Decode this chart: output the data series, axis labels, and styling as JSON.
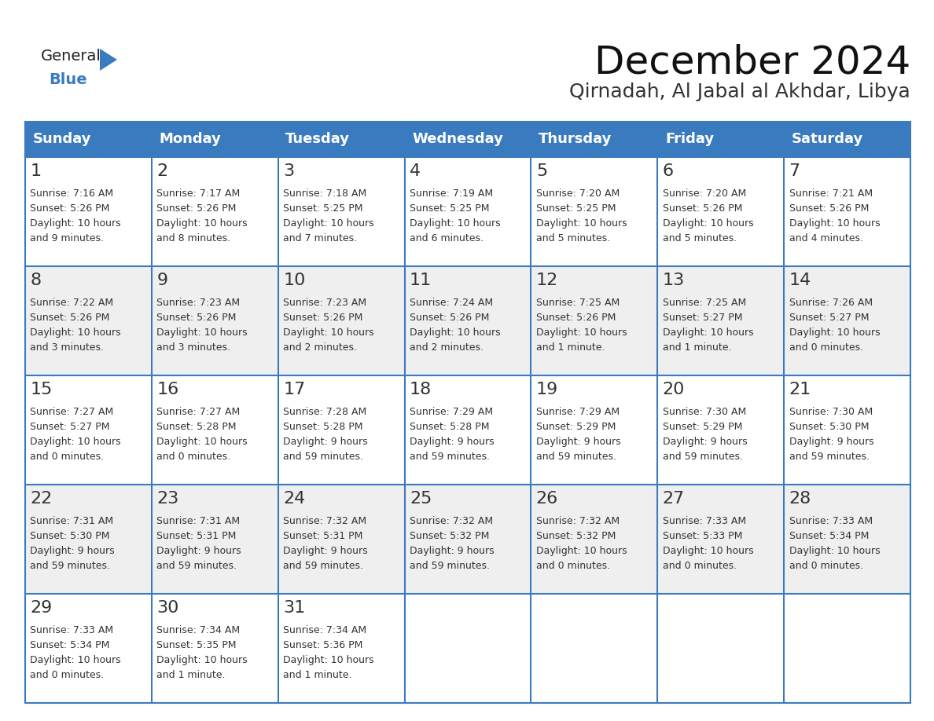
{
  "title": "December 2024",
  "subtitle": "Qirnadah, Al Jabal al Akhdar, Libya",
  "header_color": "#3a7bbf",
  "header_text_color": "#ffffff",
  "cell_bg_even": "#efefef",
  "cell_bg_odd": "#ffffff",
  "border_color": "#3a7bbf",
  "text_color": "#333333",
  "day_names": [
    "Sunday",
    "Monday",
    "Tuesday",
    "Wednesday",
    "Thursday",
    "Friday",
    "Saturday"
  ],
  "title_fontsize": 36,
  "subtitle_fontsize": 18,
  "header_fontsize": 13,
  "day_num_fontsize": 14,
  "cell_fontsize": 9,
  "logo_general_color": "#222222",
  "logo_blue_color": "#3a7bbf",
  "logo_triangle_color": "#3a7bbf",
  "calendar": [
    [
      {
        "day": 1,
        "sunrise": "7:16 AM",
        "sunset": "5:26 PM",
        "daylight_line1": "Daylight: 10 hours",
        "daylight_line2": "and 9 minutes."
      },
      {
        "day": 2,
        "sunrise": "7:17 AM",
        "sunset": "5:26 PM",
        "daylight_line1": "Daylight: 10 hours",
        "daylight_line2": "and 8 minutes."
      },
      {
        "day": 3,
        "sunrise": "7:18 AM",
        "sunset": "5:25 PM",
        "daylight_line1": "Daylight: 10 hours",
        "daylight_line2": "and 7 minutes."
      },
      {
        "day": 4,
        "sunrise": "7:19 AM",
        "sunset": "5:25 PM",
        "daylight_line1": "Daylight: 10 hours",
        "daylight_line2": "and 6 minutes."
      },
      {
        "day": 5,
        "sunrise": "7:20 AM",
        "sunset": "5:25 PM",
        "daylight_line1": "Daylight: 10 hours",
        "daylight_line2": "and 5 minutes."
      },
      {
        "day": 6,
        "sunrise": "7:20 AM",
        "sunset": "5:26 PM",
        "daylight_line1": "Daylight: 10 hours",
        "daylight_line2": "and 5 minutes."
      },
      {
        "day": 7,
        "sunrise": "7:21 AM",
        "sunset": "5:26 PM",
        "daylight_line1": "Daylight: 10 hours",
        "daylight_line2": "and 4 minutes."
      }
    ],
    [
      {
        "day": 8,
        "sunrise": "7:22 AM",
        "sunset": "5:26 PM",
        "daylight_line1": "Daylight: 10 hours",
        "daylight_line2": "and 3 minutes."
      },
      {
        "day": 9,
        "sunrise": "7:23 AM",
        "sunset": "5:26 PM",
        "daylight_line1": "Daylight: 10 hours",
        "daylight_line2": "and 3 minutes."
      },
      {
        "day": 10,
        "sunrise": "7:23 AM",
        "sunset": "5:26 PM",
        "daylight_line1": "Daylight: 10 hours",
        "daylight_line2": "and 2 minutes."
      },
      {
        "day": 11,
        "sunrise": "7:24 AM",
        "sunset": "5:26 PM",
        "daylight_line1": "Daylight: 10 hours",
        "daylight_line2": "and 2 minutes."
      },
      {
        "day": 12,
        "sunrise": "7:25 AM",
        "sunset": "5:26 PM",
        "daylight_line1": "Daylight: 10 hours",
        "daylight_line2": "and 1 minute."
      },
      {
        "day": 13,
        "sunrise": "7:25 AM",
        "sunset": "5:27 PM",
        "daylight_line1": "Daylight: 10 hours",
        "daylight_line2": "and 1 minute."
      },
      {
        "day": 14,
        "sunrise": "7:26 AM",
        "sunset": "5:27 PM",
        "daylight_line1": "Daylight: 10 hours",
        "daylight_line2": "and 0 minutes."
      }
    ],
    [
      {
        "day": 15,
        "sunrise": "7:27 AM",
        "sunset": "5:27 PM",
        "daylight_line1": "Daylight: 10 hours",
        "daylight_line2": "and 0 minutes."
      },
      {
        "day": 16,
        "sunrise": "7:27 AM",
        "sunset": "5:28 PM",
        "daylight_line1": "Daylight: 10 hours",
        "daylight_line2": "and 0 minutes."
      },
      {
        "day": 17,
        "sunrise": "7:28 AM",
        "sunset": "5:28 PM",
        "daylight_line1": "Daylight: 9 hours",
        "daylight_line2": "and 59 minutes."
      },
      {
        "day": 18,
        "sunrise": "7:29 AM",
        "sunset": "5:28 PM",
        "daylight_line1": "Daylight: 9 hours",
        "daylight_line2": "and 59 minutes."
      },
      {
        "day": 19,
        "sunrise": "7:29 AM",
        "sunset": "5:29 PM",
        "daylight_line1": "Daylight: 9 hours",
        "daylight_line2": "and 59 minutes."
      },
      {
        "day": 20,
        "sunrise": "7:30 AM",
        "sunset": "5:29 PM",
        "daylight_line1": "Daylight: 9 hours",
        "daylight_line2": "and 59 minutes."
      },
      {
        "day": 21,
        "sunrise": "7:30 AM",
        "sunset": "5:30 PM",
        "daylight_line1": "Daylight: 9 hours",
        "daylight_line2": "and 59 minutes."
      }
    ],
    [
      {
        "day": 22,
        "sunrise": "7:31 AM",
        "sunset": "5:30 PM",
        "daylight_line1": "Daylight: 9 hours",
        "daylight_line2": "and 59 minutes."
      },
      {
        "day": 23,
        "sunrise": "7:31 AM",
        "sunset": "5:31 PM",
        "daylight_line1": "Daylight: 9 hours",
        "daylight_line2": "and 59 minutes."
      },
      {
        "day": 24,
        "sunrise": "7:32 AM",
        "sunset": "5:31 PM",
        "daylight_line1": "Daylight: 9 hours",
        "daylight_line2": "and 59 minutes."
      },
      {
        "day": 25,
        "sunrise": "7:32 AM",
        "sunset": "5:32 PM",
        "daylight_line1": "Daylight: 9 hours",
        "daylight_line2": "and 59 minutes."
      },
      {
        "day": 26,
        "sunrise": "7:32 AM",
        "sunset": "5:32 PM",
        "daylight_line1": "Daylight: 10 hours",
        "daylight_line2": "and 0 minutes."
      },
      {
        "day": 27,
        "sunrise": "7:33 AM",
        "sunset": "5:33 PM",
        "daylight_line1": "Daylight: 10 hours",
        "daylight_line2": "and 0 minutes."
      },
      {
        "day": 28,
        "sunrise": "7:33 AM",
        "sunset": "5:34 PM",
        "daylight_line1": "Daylight: 10 hours",
        "daylight_line2": "and 0 minutes."
      }
    ],
    [
      {
        "day": 29,
        "sunrise": "7:33 AM",
        "sunset": "5:34 PM",
        "daylight_line1": "Daylight: 10 hours",
        "daylight_line2": "and 0 minutes."
      },
      {
        "day": 30,
        "sunrise": "7:34 AM",
        "sunset": "5:35 PM",
        "daylight_line1": "Daylight: 10 hours",
        "daylight_line2": "and 1 minute."
      },
      {
        "day": 31,
        "sunrise": "7:34 AM",
        "sunset": "5:36 PM",
        "daylight_line1": "Daylight: 10 hours",
        "daylight_line2": "and 1 minute."
      },
      null,
      null,
      null,
      null
    ]
  ]
}
